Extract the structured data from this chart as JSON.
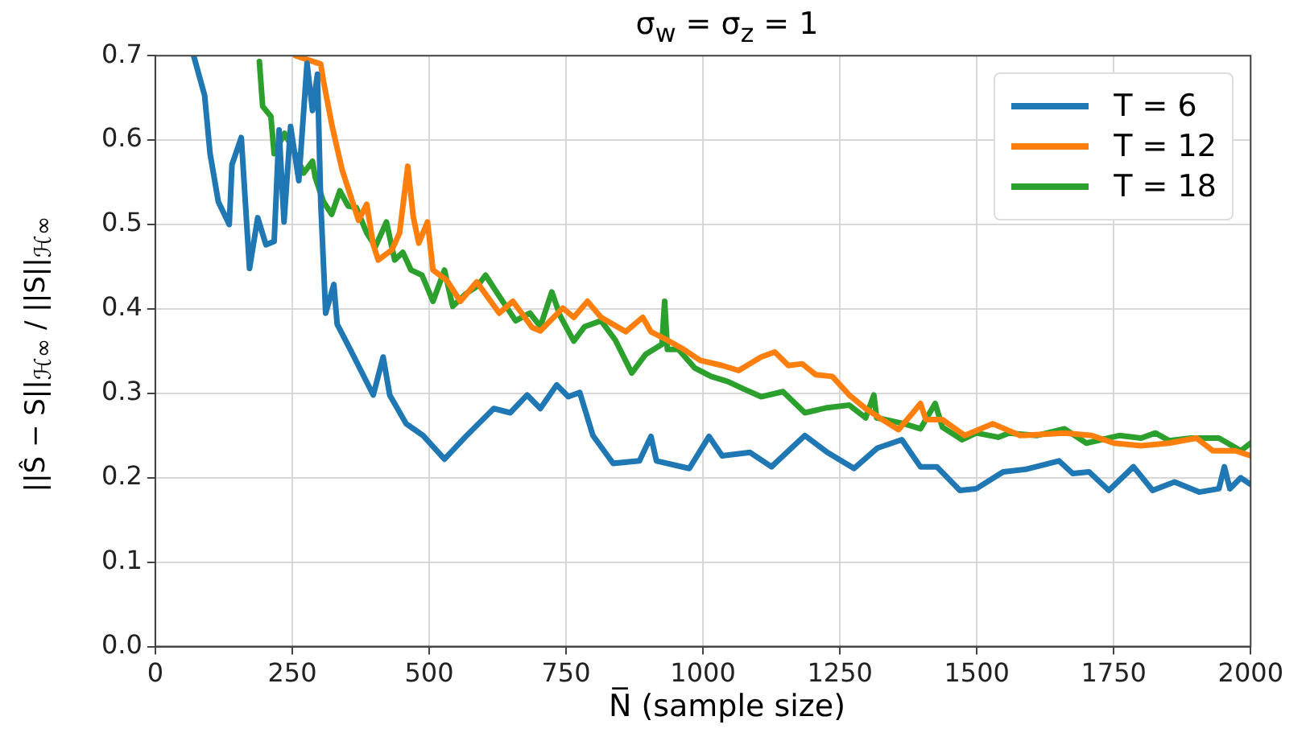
{
  "chart_data": {
    "type": "line",
    "title": "σ$_{w}$ = σ$_{z}$ = 1",
    "xlabel": "N̅ (sample size)",
    "ylabel": "||Ŝ − S||$_{ℋ∞}$ / ||S||$_{ℋ∞}$",
    "xlim": [
      0,
      2000
    ],
    "xticks": [
      0,
      250,
      500,
      750,
      1000,
      1250,
      1500,
      1750,
      2000
    ],
    "ylim": [
      0,
      0.7
    ],
    "yticks": [
      {
        "value": 0,
        "label": "0.0"
      },
      0.1,
      0.2,
      0.3,
      0.4,
      0.5,
      0.6,
      0.7
    ],
    "grid": true,
    "legend": "top right",
    "marker": "none",
    "line_style": "solid",
    "series": [
      {
        "name": "T = 6",
        "color": "#1f77b4",
        "x": [
          70,
          90,
          100,
          115,
          135,
          140,
          157,
          172,
          187,
          202,
          217,
          226,
          235,
          247,
          262,
          277,
          287,
          296,
          302,
          311,
          326,
          332,
          356,
          398,
          416,
          428,
          458,
          489,
          528,
          567,
          618,
          648,
          679,
          703,
          733,
          754,
          775,
          799,
          836,
          884,
          905,
          915,
          975,
          1011,
          1035,
          1086,
          1125,
          1186,
          1227,
          1276,
          1318,
          1363,
          1397,
          1427,
          1469,
          1499,
          1548,
          1589,
          1650,
          1675,
          1705,
          1741,
          1786,
          1821,
          1861,
          1906,
          1942,
          1952,
          1962,
          1982,
          2000
        ],
        "values": [
          0.7,
          0.653,
          0.584,
          0.527,
          0.5,
          0.571,
          0.603,
          0.448,
          0.508,
          0.476,
          0.48,
          0.612,
          0.503,
          0.616,
          0.552,
          0.691,
          0.635,
          0.678,
          0.527,
          0.395,
          0.429,
          0.382,
          0.352,
          0.298,
          0.343,
          0.298,
          0.264,
          0.25,
          0.222,
          0.249,
          0.282,
          0.277,
          0.298,
          0.282,
          0.31,
          0.296,
          0.301,
          0.25,
          0.217,
          0.22,
          0.249,
          0.22,
          0.211,
          0.249,
          0.226,
          0.23,
          0.213,
          0.25,
          0.23,
          0.211,
          0.235,
          0.245,
          0.213,
          0.213,
          0.185,
          0.187,
          0.207,
          0.21,
          0.22,
          0.205,
          0.207,
          0.185,
          0.213,
          0.185,
          0.195,
          0.183,
          0.187,
          0.213,
          0.187,
          0.2,
          0.192
        ]
      },
      {
        "name": "T = 12",
        "color": "#ff7f0e",
        "x": [
          256,
          302,
          307,
          323,
          341,
          356,
          371,
          386,
          398,
          407,
          432,
          446,
          461,
          471,
          481,
          497,
          507,
          532,
          557,
          587,
          628,
          653,
          688,
          703,
          744,
          764,
          789,
          814,
          859,
          890,
          905,
          935,
          965,
          995,
          1035,
          1065,
          1106,
          1131,
          1156,
          1181,
          1206,
          1236,
          1267,
          1297,
          1327,
          1357,
          1382,
          1397,
          1407,
          1437,
          1478,
          1529,
          1579,
          1660,
          1710,
          1750,
          1800,
          1851,
          1901,
          1931,
          1972,
          2000
        ],
        "values": [
          0.7,
          0.69,
          0.67,
          0.616,
          0.565,
          0.535,
          0.505,
          0.524,
          0.476,
          0.458,
          0.47,
          0.49,
          0.569,
          0.509,
          0.478,
          0.503,
          0.446,
          0.434,
          0.409,
          0.432,
          0.395,
          0.409,
          0.378,
          0.374,
          0.401,
          0.39,
          0.409,
          0.39,
          0.373,
          0.39,
          0.373,
          0.363,
          0.352,
          0.339,
          0.333,
          0.327,
          0.343,
          0.349,
          0.333,
          0.335,
          0.322,
          0.32,
          0.298,
          0.282,
          0.269,
          0.257,
          0.276,
          0.288,
          0.269,
          0.269,
          0.25,
          0.264,
          0.25,
          0.253,
          0.25,
          0.241,
          0.238,
          0.241,
          0.247,
          0.232,
          0.232,
          0.226
        ]
      },
      {
        "name": "T = 18",
        "color": "#2ca02c",
        "x": [
          190,
          196,
          211,
          217,
          236,
          251,
          271,
          287,
          292,
          307,
          322,
          337,
          352,
          367,
          386,
          402,
          422,
          437,
          452,
          467,
          487,
          507,
          528,
          543,
          567,
          588,
          603,
          628,
          658,
          684,
          703,
          724,
          739,
          764,
          784,
          814,
          840,
          870,
          895,
          925,
          930,
          935,
          955,
          985,
          1015,
          1045,
          1075,
          1106,
          1146,
          1186,
          1227,
          1267,
          1297,
          1312,
          1317,
          1367,
          1397,
          1424,
          1437,
          1473,
          1499,
          1539,
          1559,
          1609,
          1660,
          1700,
          1760,
          1800,
          1826,
          1851,
          1891,
          1942,
          1982,
          2000
        ],
        "values": [
          0.693,
          0.64,
          0.628,
          0.584,
          0.608,
          0.59,
          0.561,
          0.575,
          0.556,
          0.527,
          0.512,
          0.54,
          0.522,
          0.52,
          0.49,
          0.474,
          0.503,
          0.458,
          0.467,
          0.446,
          0.44,
          0.409,
          0.446,
          0.403,
          0.418,
          0.427,
          0.44,
          0.415,
          0.386,
          0.395,
          0.379,
          0.42,
          0.392,
          0.362,
          0.379,
          0.386,
          0.363,
          0.324,
          0.346,
          0.358,
          0.409,
          0.352,
          0.352,
          0.33,
          0.32,
          0.314,
          0.305,
          0.296,
          0.302,
          0.277,
          0.283,
          0.286,
          0.271,
          0.298,
          0.271,
          0.264,
          0.258,
          0.288,
          0.26,
          0.245,
          0.253,
          0.248,
          0.253,
          0.25,
          0.258,
          0.241,
          0.25,
          0.247,
          0.253,
          0.244,
          0.247,
          0.247,
          0.232,
          0.241
        ]
      }
    ]
  }
}
